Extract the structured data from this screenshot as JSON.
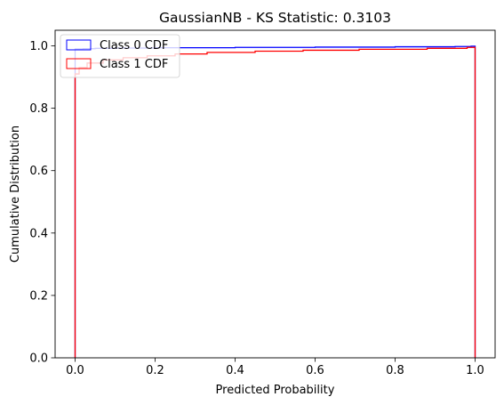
{
  "chart_data": {
    "type": "line",
    "subtype": "step-cdf",
    "title": "GaussianNB - KS Statistic: 0.3103",
    "xlabel": "Predicted Probability",
    "ylabel": "Cumulative Distribution",
    "xlim": [
      -0.05,
      1.05
    ],
    "ylim": [
      0.0,
      1.05
    ],
    "xticks": [
      0.0,
      0.2,
      0.4,
      0.6,
      0.8,
      1.0
    ],
    "xtick_labels": [
      "0.0",
      "0.2",
      "0.4",
      "0.6",
      "0.8",
      "1.0"
    ],
    "yticks": [
      0.0,
      0.2,
      0.4,
      0.6,
      0.8,
      1.0
    ],
    "ytick_labels": [
      "0.0",
      "0.2",
      "0.4",
      "0.6",
      "0.8",
      "1.0"
    ],
    "grid": false,
    "legend_position": "upper-left",
    "series": [
      {
        "name": "Class 0 CDF",
        "color": "#0000ff",
        "x": [
          0.0,
          0.0,
          0.02,
          0.05,
          0.1,
          0.2,
          0.4,
          0.6,
          0.8,
          0.95,
          0.99,
          1.0,
          1.0
        ],
        "y": [
          0.0,
          0.99,
          0.991,
          0.992,
          0.993,
          0.994,
          0.995,
          0.996,
          0.997,
          0.998,
          0.999,
          0.999,
          0.0
        ]
      },
      {
        "name": "Class 1 CDF",
        "color": "#ff0000",
        "x": [
          0.0,
          0.0,
          0.01,
          0.03,
          0.07,
          0.12,
          0.18,
          0.25,
          0.33,
          0.45,
          0.57,
          0.71,
          0.88,
          0.98,
          1.0,
          1.0
        ],
        "y": [
          0.0,
          0.91,
          0.93,
          0.945,
          0.955,
          0.962,
          0.968,
          0.974,
          0.979,
          0.983,
          0.986,
          0.989,
          0.992,
          0.995,
          0.995,
          0.0
        ]
      }
    ]
  }
}
